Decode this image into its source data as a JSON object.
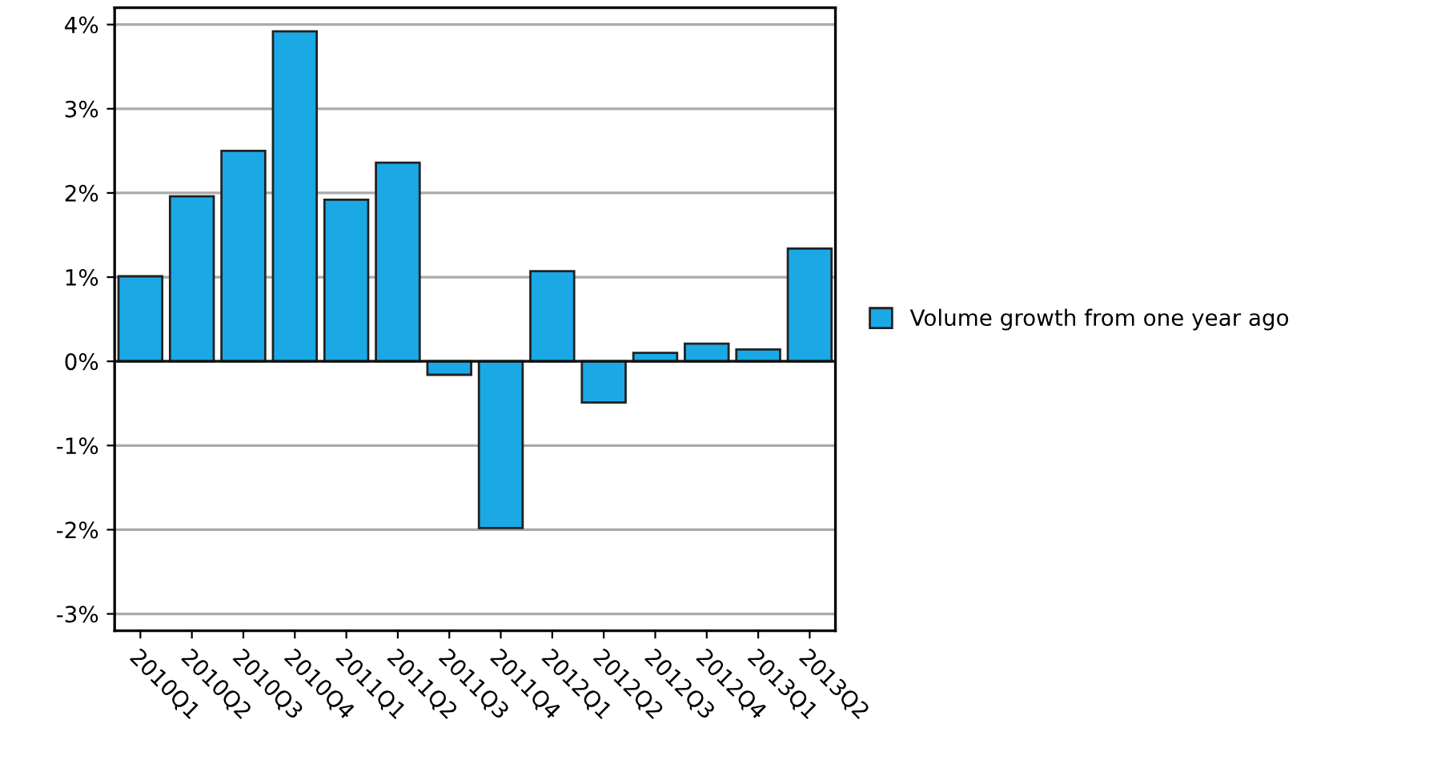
{
  "chart_data": {
    "type": "bar",
    "categories": [
      "2010Q1",
      "2010Q2",
      "2010Q3",
      "2010Q4",
      "2011Q1",
      "2011Q2",
      "2011Q3",
      "2011Q4",
      "2012Q1",
      "2012Q2",
      "2012Q3",
      "2012Q4",
      "2013Q1",
      "2013Q2"
    ],
    "series": [
      {
        "name": "Volume growth from one year ago",
        "color": "#1ba9e6",
        "values": [
          1.01,
          1.96,
          2.5,
          3.92,
          1.92,
          2.36,
          -0.16,
          -1.98,
          1.07,
          -0.49,
          0.1,
          0.21,
          0.14,
          1.34
        ]
      }
    ],
    "ylim": [
      -3.2,
      4.2
    ],
    "yticks": [
      {
        "value": -3,
        "label": "-3%"
      },
      {
        "value": -2,
        "label": "-2%"
      },
      {
        "value": -1,
        "label": "-1%"
      },
      {
        "value": 0,
        "label": "0%"
      },
      {
        "value": 1,
        "label": "1%"
      },
      {
        "value": 2,
        "label": "2%"
      },
      {
        "value": 3,
        "label": "3%"
      },
      {
        "value": 4,
        "label": "4%"
      }
    ],
    "grid": "y",
    "legend": "right"
  }
}
